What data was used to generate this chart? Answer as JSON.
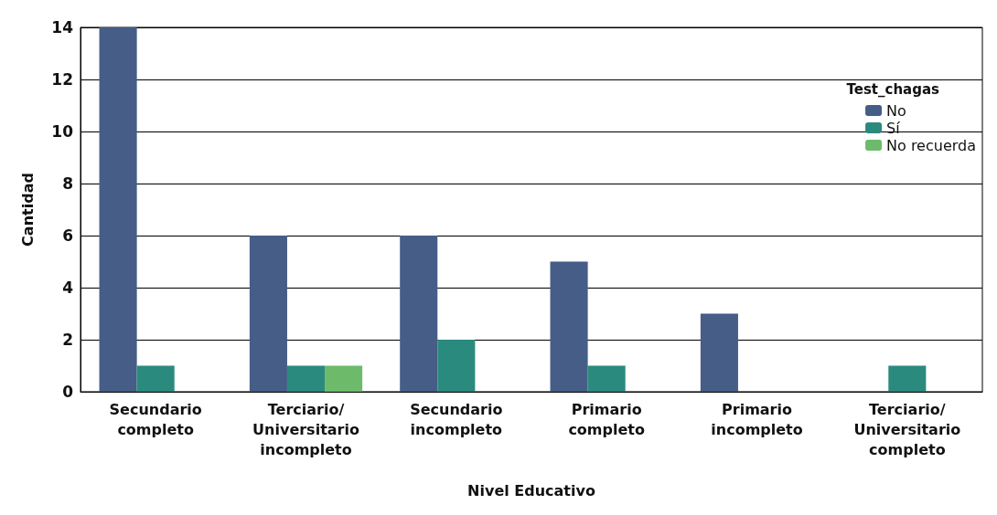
{
  "chart_data": {
    "type": "bar",
    "xlabel": "Nivel Educativo",
    "ylabel": "Cantidad",
    "legend_title": "Test_chagas",
    "categories": [
      "Secundario completo",
      "Terciario/Universitario incompleto",
      "Secundario incompleto",
      "Primario completo",
      "Primario incompleto",
      "Terciario/Universitario completo"
    ],
    "series": [
      {
        "name": "No",
        "color": "#455d87",
        "values": [
          14,
          6,
          6,
          5,
          3,
          null
        ]
      },
      {
        "name": "Sí",
        "color": "#2b8a7e",
        "values": [
          1,
          1,
          2,
          1,
          null,
          1
        ]
      },
      {
        "name": "No recuerda",
        "color": "#6dbb6a",
        "values": [
          null,
          1,
          null,
          null,
          null,
          null
        ]
      }
    ],
    "ylim": [
      0,
      14
    ],
    "yticks": [
      0,
      2,
      4,
      6,
      8,
      10,
      12,
      14
    ],
    "grid": "y",
    "legend": "top right"
  }
}
